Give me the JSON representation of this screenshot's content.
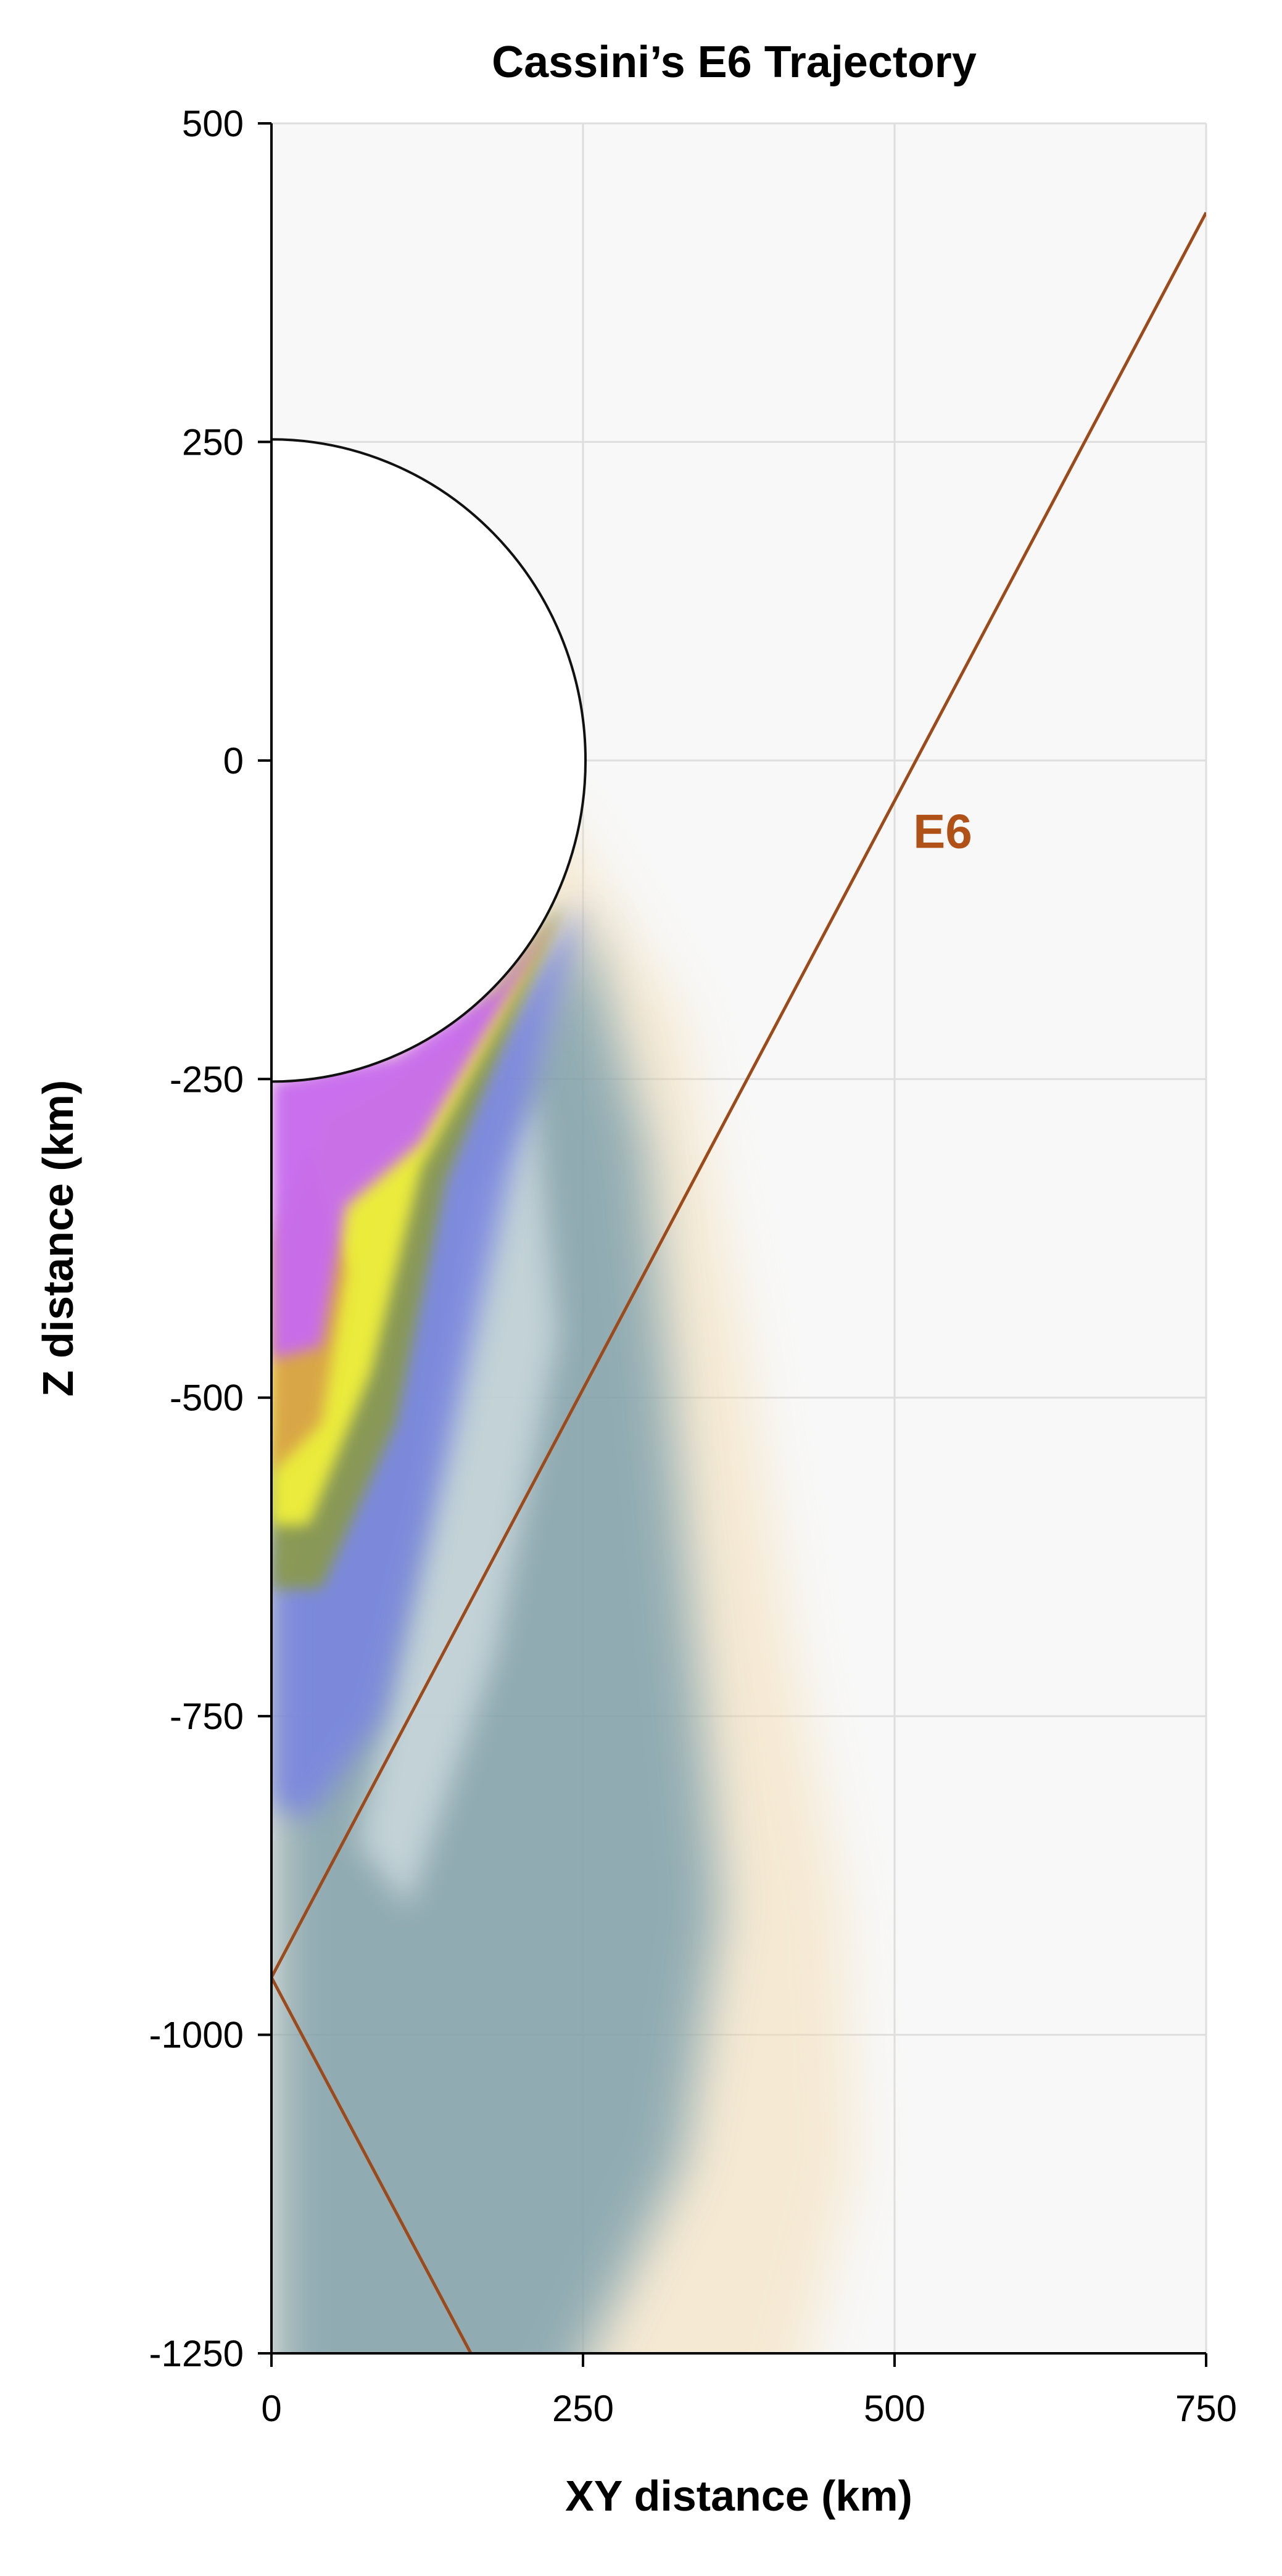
{
  "chart_data": {
    "type": "line",
    "title": "Cassini’s E6 Trajectory",
    "xlabel": "XY distance (km)",
    "ylabel": "Z distance (km)",
    "xlim": [
      0,
      750
    ],
    "ylim": [
      -1250,
      500
    ],
    "x_ticks": [
      "0",
      "250",
      "500",
      "750"
    ],
    "y_ticks": [
      "500",
      "250",
      "0",
      "-250",
      "-500",
      "-750",
      "-1000",
      "-1250"
    ],
    "grid": true,
    "moon_radius_km": 252,
    "series": [
      {
        "name": "E6",
        "color": "#9c4a1a",
        "x": [
          750,
          0,
          160
        ],
        "y": [
          430,
          -955,
          -1250
        ]
      }
    ],
    "annotations": [
      {
        "text": "E6",
        "x": 515,
        "y": -55,
        "color": "#b05218"
      }
    ],
    "colors": {
      "plume_magenta": "#c86af0",
      "plume_yellow": "#f0f03a",
      "plume_orange": "#d69a4a",
      "plume_green": "#8a9a4a",
      "plume_blue": "#7a86e0",
      "plume_teal": "#6f97a8",
      "plume_pale": "#f2d8a8",
      "plot_background": "#f8f8f8",
      "grid": "#dedede"
    }
  }
}
